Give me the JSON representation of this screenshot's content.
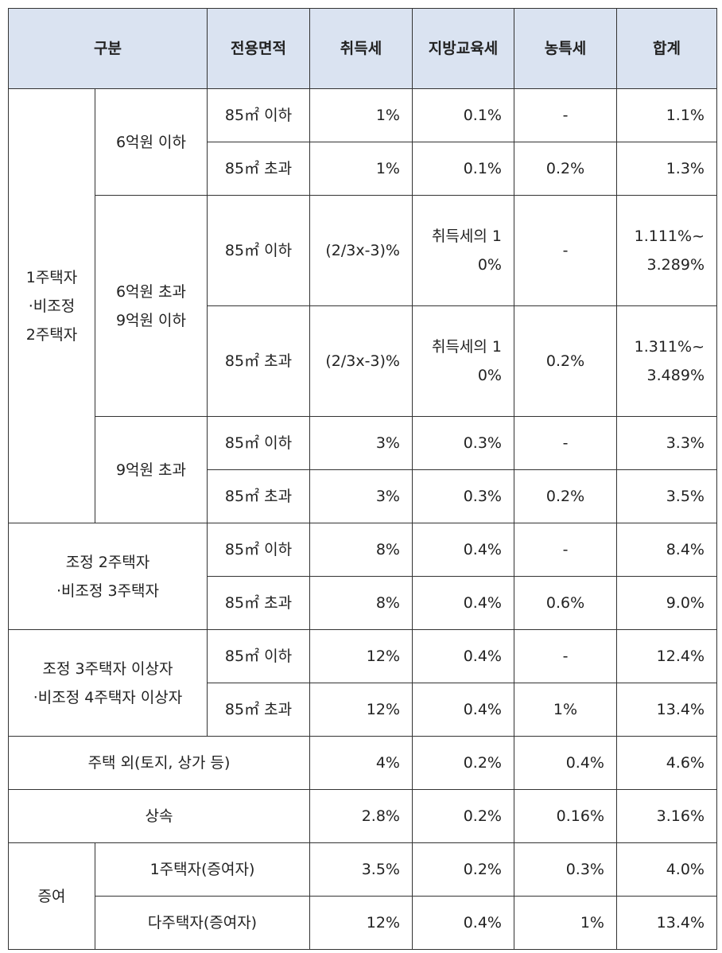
{
  "table": {
    "header": [
      "구분",
      "전용면적",
      "취득세",
      "지방교육세",
      "농특세",
      "합계"
    ],
    "rows": [
      [
        "1주택자\n·비조정\n2주택자",
        "6억원 이하",
        "85㎡ 이하",
        "1%",
        "0.1%",
        "-",
        "1.1%"
      ],
      [
        "85㎡ 초과",
        "1%",
        "0.1%",
        "0.2%",
        "1.3%"
      ],
      [
        "6억원 초과\n9억원 이하",
        "85㎡ 이하",
        "(2/3x-3)%",
        "취득세의 10%",
        "-",
        "1.111%~3.289%"
      ],
      [
        "85㎡ 초과",
        "(2/3x-3)%",
        "취득세의 10%",
        "0.2%",
        "1.311%~3.489%"
      ],
      [
        "9억원 초과",
        "85㎡ 이하",
        "3%",
        "0.3%",
        "-",
        "3.3%"
      ],
      [
        "85㎡ 초과",
        "3%",
        "0.3%",
        "0.2%",
        "3.5%"
      ],
      [
        "조정 2주택자\n·비조정 3주택자",
        "85㎡ 이하",
        "8%",
        "0.4%",
        "-",
        "8.4%"
      ],
      [
        "85㎡ 초과",
        "8%",
        "0.4%",
        "0.6%",
        "9.0%"
      ],
      [
        "조정 3주택자 이상자\n·비조정 4주택자 이상자",
        "85㎡ 이하",
        "12%",
        "0.4%",
        "-",
        "12.4%"
      ],
      [
        "85㎡ 초과",
        "12%",
        "0.4%",
        "1%",
        "13.4%"
      ],
      [
        "주택 외(토지, 상가 등)",
        "4%",
        "0.2%",
        "0.4%",
        "4.6%"
      ],
      [
        "상속",
        "2.8%",
        "0.2%",
        "0.16%",
        "3.16%"
      ],
      [
        "증여",
        "1주택자(증여자)",
        "3.5%",
        "0.2%",
        "0.3%",
        "4.0%"
      ],
      [
        "다주택자(증여자)",
        "12%",
        "0.4%",
        "1%",
        "13.4%"
      ]
    ]
  }
}
